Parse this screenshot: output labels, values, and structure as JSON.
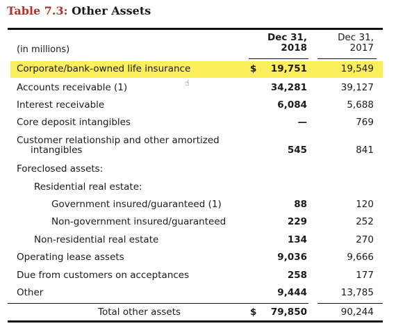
{
  "table": {
    "number": "Table 7.3:",
    "title": "Other Assets",
    "units": "(in millions)",
    "col_2018_line1": "Dec 31,",
    "col_2018_line2": "2018",
    "col_2017_line1": "Dec 31,",
    "col_2017_line2": "2017",
    "rows": [
      {
        "label": "Corporate/bank-owned life insurance",
        "dollar": "$",
        "v2018": "19,751",
        "v2017": "19,549"
      },
      {
        "label": "Accounts receivable (1)",
        "v2018": "34,281",
        "v2017": "39,127"
      },
      {
        "label": "Interest receivable",
        "v2018": "6,084",
        "v2017": "5,688"
      },
      {
        "label": "Core deposit intangibles",
        "v2018": "—",
        "v2017": "769"
      },
      {
        "label": "Customer relationship and other amortized",
        "label2": "intangibles",
        "v2018": "545",
        "v2017": "841"
      },
      {
        "label": "Foreclosed assets:"
      },
      {
        "label": "Residential real estate:"
      },
      {
        "label": "Government insured/guaranteed (1)",
        "v2018": "88",
        "v2017": "120"
      },
      {
        "label": "Non-government insured/guaranteed",
        "v2018": "229",
        "v2017": "252"
      },
      {
        "label": "Non-residential real estate",
        "v2018": "134",
        "v2017": "270"
      },
      {
        "label": "Operating lease assets",
        "v2018": "9,036",
        "v2017": "9,666"
      },
      {
        "label": "Due from customers on acceptances",
        "v2018": "258",
        "v2017": "177"
      },
      {
        "label": "Other",
        "v2018": "9,444",
        "v2017": "13,785"
      },
      {
        "label": "Total other assets",
        "dollar": "$",
        "v2018": "79,850",
        "v2017": "90,244"
      }
    ]
  },
  "colors": {
    "highlight": "#fbef5c",
    "title_number": "#b0342b"
  },
  "icons": {
    "cursor": "hand-pointer-icon"
  }
}
